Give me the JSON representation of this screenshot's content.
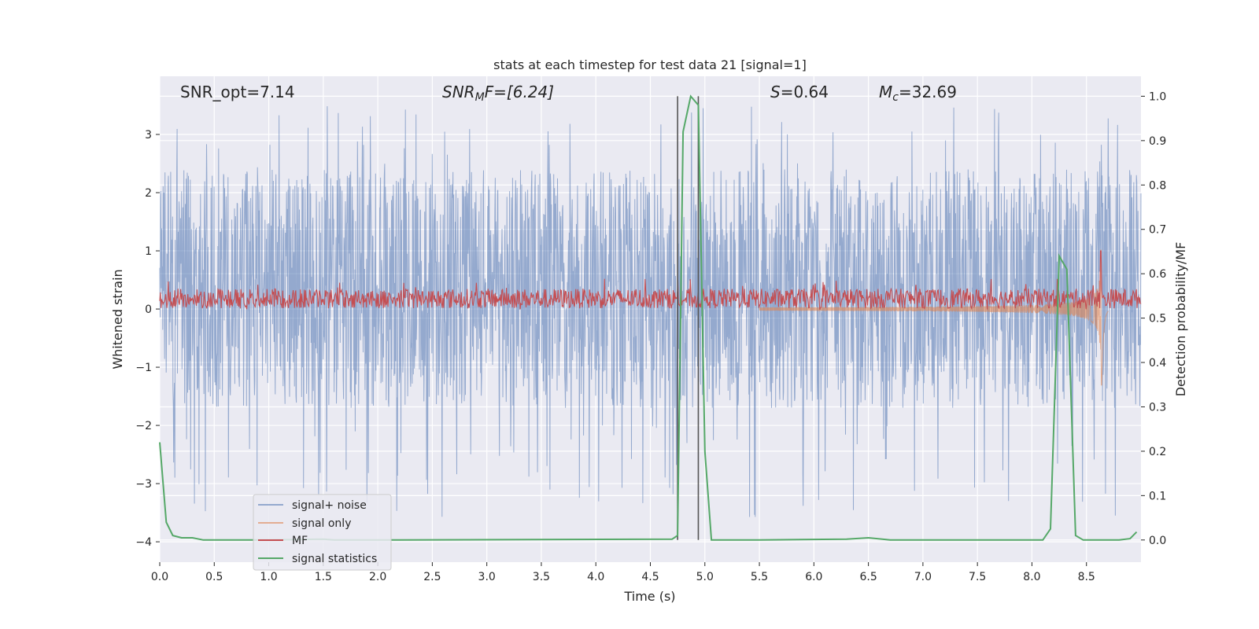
{
  "chart_data": {
    "type": "line",
    "title": "stats at each timestep for test data 21 [signal=1]",
    "xlabel": "Time (s)",
    "ylabel_left": "Whitened strain",
    "ylabel_right": "Detection probability/MF",
    "xlim": [
      0.0,
      9.0
    ],
    "ylim_left": [
      -4.35,
      4.0
    ],
    "ylim_right": [
      -0.05,
      1.045
    ],
    "x_ticks": [
      "0.0",
      "0.5",
      "1.0",
      "1.5",
      "2.0",
      "2.5",
      "3.0",
      "3.5",
      "4.0",
      "4.5",
      "5.0",
      "5.5",
      "6.0",
      "6.5",
      "7.0",
      "7.5",
      "8.0",
      "8.5"
    ],
    "y_ticks_left": [
      "3",
      "2",
      "1",
      "0",
      "−1",
      "−2",
      "−3",
      "−4"
    ],
    "y_ticks_right": [
      "1.0",
      "0.9",
      "0.8",
      "0.7",
      "0.6",
      "0.5",
      "0.4",
      "0.3",
      "0.2",
      "0.1",
      "0.0"
    ],
    "grid": true,
    "legend_placement": "lower-left",
    "annotations": [
      {
        "text": "SNR_opt=7.14"
      },
      {
        "pre": "SNR",
        "sub": "M",
        "post": "F=[6.24]"
      },
      {
        "pre": "S",
        "sub": "",
        "post": "=0.64"
      },
      {
        "pre": "M",
        "sub": "c",
        "post": "=32.69"
      }
    ],
    "vertical_lines": [
      4.75,
      4.94
    ],
    "series": [
      {
        "name": "signal+ noise",
        "color": "#4c72b0",
        "axis": "left",
        "style": "noise",
        "envelope": [
          -1.7,
          2.4
        ],
        "peaks": [
          3.6,
          -3.6
        ]
      },
      {
        "name": "signal only",
        "color": "#dd8452",
        "axis": "left",
        "style": "chirp",
        "merger_time": 8.64,
        "peak_amplitude": 1.5
      },
      {
        "name": "MF",
        "color": "#c44e52",
        "axis": "left",
        "style": "noise",
        "mean": 0.18,
        "range": [
          -0.02,
          0.52
        ],
        "spike": {
          "x": 8.63,
          "y": 1.0
        }
      },
      {
        "name": "signal statistics",
        "color": "#55a868",
        "axis": "right",
        "x": [
          0.0,
          0.06,
          0.12,
          0.2,
          0.3,
          0.4,
          1.0,
          1.5,
          1.6,
          2.0,
          4.7,
          4.75,
          4.8,
          4.87,
          4.94,
          5.0,
          5.06,
          5.5,
          6.3,
          6.5,
          6.7,
          8.1,
          8.17,
          8.25,
          8.32,
          8.4,
          8.47,
          8.8,
          8.9,
          8.96
        ],
        "y": [
          0.22,
          0.04,
          0.01,
          0.005,
          0.005,
          0.0,
          0.0,
          0.002,
          0.0,
          0.0,
          0.002,
          0.01,
          0.92,
          1.0,
          0.98,
          0.2,
          0.0,
          0.0,
          0.002,
          0.005,
          0.0,
          0.0,
          0.025,
          0.64,
          0.61,
          0.01,
          0.0,
          0.0,
          0.003,
          0.018
        ]
      }
    ]
  }
}
